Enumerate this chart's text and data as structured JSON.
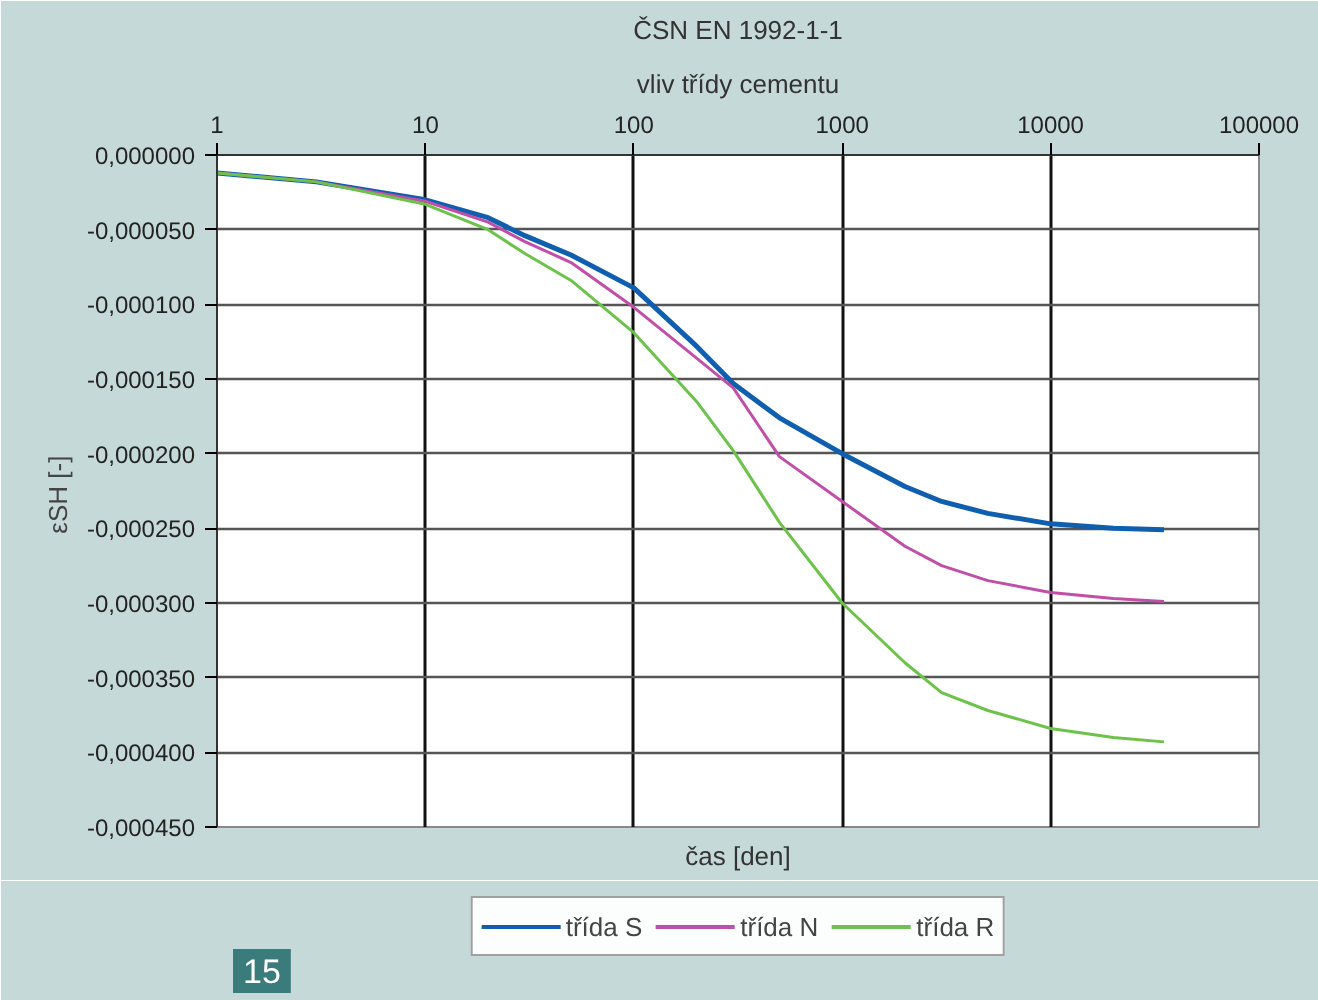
{
  "chart_data": {
    "type": "line",
    "title": "ČSN EN 1992-1-1",
    "subtitle": "vliv třídy cementu",
    "xlabel": "čas [den]",
    "ylabel": "εSH  [-]",
    "log": "x",
    "xlim": [
      1,
      100000
    ],
    "xticks": [
      1,
      10,
      100,
      1000,
      10000,
      100000
    ],
    "ylim": [
      -0.00045,
      0
    ],
    "yticks": [
      {
        "value": 0,
        "label": "0,000000"
      },
      {
        "value": -5e-05,
        "label": "-0,000050"
      },
      {
        "value": -0.0001,
        "label": "-0,000100"
      },
      {
        "value": -0.00015,
        "label": "-0,000150"
      },
      {
        "value": -0.0002,
        "label": "-0,000200"
      },
      {
        "value": -0.00025,
        "label": "-0,000250"
      },
      {
        "value": -0.0003,
        "label": "-0,000300"
      },
      {
        "value": -0.00035,
        "label": "-0,000350"
      },
      {
        "value": -0.0004,
        "label": "-0,000400"
      },
      {
        "value": -0.00045,
        "label": "-0,000450"
      }
    ],
    "grid": true,
    "legend": "bottom",
    "marker": "none",
    "line_style": "solid",
    "x": [
      1,
      3,
      10,
      20,
      30,
      50,
      100,
      200,
      300,
      500,
      1000,
      2000,
      3000,
      5000,
      10000,
      20000,
      35000
    ],
    "series": [
      {
        "name": "třída S",
        "color": "#0f5fae",
        "values": [
          -1.2e-05,
          -1.8e-05,
          -3e-05,
          -4.2e-05,
          -5.4e-05,
          -6.7e-05,
          -8.9e-05,
          -0.000128,
          -0.000153,
          -0.000176,
          -0.0002,
          -0.000222,
          -0.000232,
          -0.00024,
          -0.000247,
          -0.00025,
          -0.000251
        ]
      },
      {
        "name": "třída N",
        "color": "#c04fa8",
        "values": [
          -1.2e-05,
          -1.8e-05,
          -3.1e-05,
          -4.5e-05,
          -5.8e-05,
          -7.2e-05,
          -0.000102,
          -0.000136,
          -0.000156,
          -0.000202,
          -0.000232,
          -0.000262,
          -0.000275,
          -0.000285,
          -0.000293,
          -0.000297,
          -0.000299
        ]
      },
      {
        "name": "třída R",
        "color": "#6cc24a",
        "values": [
          -1.2e-05,
          -1.8e-05,
          -3.3e-05,
          -5e-05,
          -6.6e-05,
          -8.4e-05,
          -0.000119,
          -0.000165,
          -0.000198,
          -0.000246,
          -0.0003,
          -0.00034,
          -0.00036,
          -0.000372,
          -0.000384,
          -0.00039,
          -0.000393
        ]
      }
    ],
    "annotations": [
      "15"
    ]
  }
}
